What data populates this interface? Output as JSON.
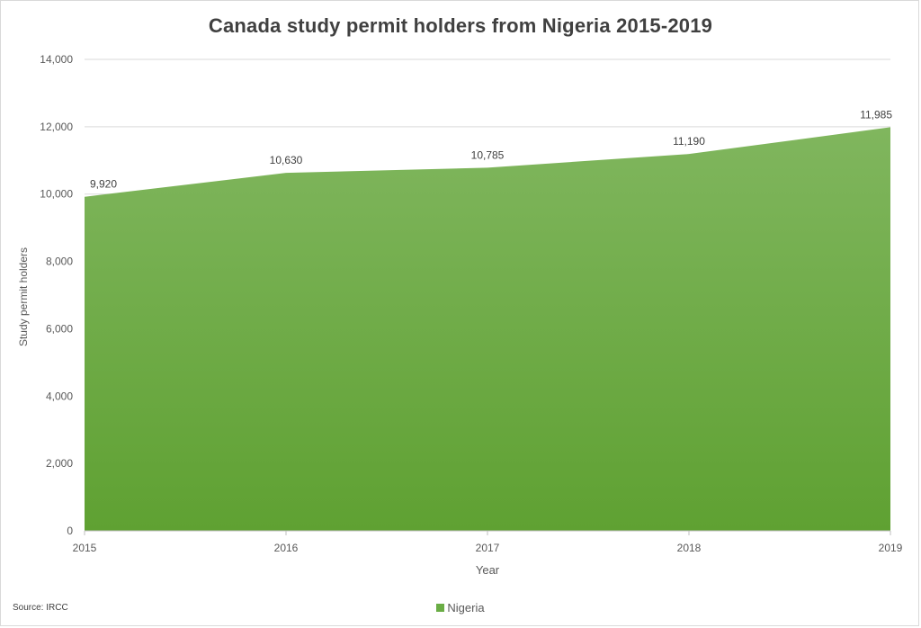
{
  "chart_data": {
    "type": "area",
    "title": "Canada study permit holders from Nigeria 2015-2019",
    "xlabel": "Year",
    "ylabel": "Study permit holders",
    "x": [
      "2015",
      "2016",
      "2017",
      "2018",
      "2019"
    ],
    "series": [
      {
        "name": "Nigeria",
        "values": [
          9920,
          10630,
          10785,
          11190,
          11985
        ],
        "color": "#6aad45"
      }
    ],
    "data_labels": [
      "9,920",
      "10,630",
      "10,785",
      "11,190",
      "11,985"
    ],
    "ylim": [
      0,
      14000
    ],
    "yticks": [
      0,
      2000,
      4000,
      6000,
      8000,
      10000,
      12000,
      14000
    ],
    "ytick_labels": [
      "0",
      "2,000",
      "4,000",
      "6,000",
      "8,000",
      "10,000",
      "12,000",
      "14,000"
    ],
    "grid": true,
    "legend_position": "bottom"
  },
  "source": "Source: IRCC",
  "colors": {
    "fill_top": "#80b65e",
    "fill_bottom": "#5fa132",
    "grid": "#d9d9d9",
    "text": "#595959"
  }
}
